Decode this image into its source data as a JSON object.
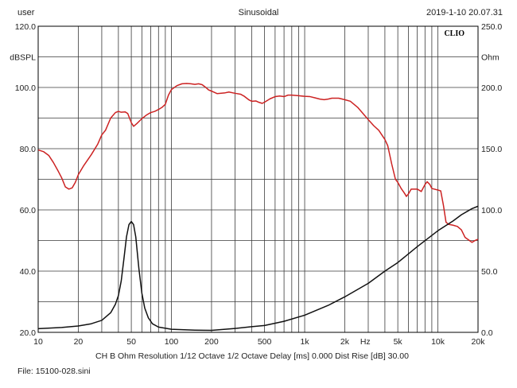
{
  "header": {
    "user": "user",
    "mode": "Sinusoidal",
    "datetime": "2019-1-10 20.07.31"
  },
  "footer": {
    "settings": "CH B   Ohm   Resolution 1/12 Octave   1/2 Octave   Delay [ms] 0.000   Dist Rise [dB] 30.00",
    "file": "File: 15100-028.sini"
  },
  "chart_data": {
    "type": "line",
    "brand_label": "CLIO",
    "xscale": "log",
    "xlim": [
      10,
      20000
    ],
    "x_unit_label": "Hz",
    "x_ticks": [
      {
        "v": 10,
        "label": "10"
      },
      {
        "v": 20,
        "label": "20"
      },
      {
        "v": 50,
        "label": "50"
      },
      {
        "v": 100,
        "label": "100"
      },
      {
        "v": 200,
        "label": "200"
      },
      {
        "v": 500,
        "label": "500"
      },
      {
        "v": 1000,
        "label": "1k"
      },
      {
        "v": 2000,
        "label": "2k"
      },
      {
        "v": 5000,
        "label": "5k"
      },
      {
        "v": 10000,
        "label": "10k"
      },
      {
        "v": 20000,
        "label": "20k"
      }
    ],
    "y_left": {
      "label": "dBSPL",
      "lim": [
        20,
        120
      ],
      "ticks": [
        {
          "v": 20,
          "label": "20.0"
        },
        {
          "v": 40,
          "label": "40.0"
        },
        {
          "v": 60,
          "label": "60.0"
        },
        {
          "v": 80,
          "label": "80.0"
        },
        {
          "v": 100,
          "label": "100.0"
        },
        {
          "v": 120,
          "label": "120.0"
        }
      ]
    },
    "y_right": {
      "label": "Ohm",
      "lim": [
        0,
        250
      ],
      "ticks": [
        {
          "v": 0,
          "label": "0.0"
        },
        {
          "v": 50,
          "label": "50.0"
        },
        {
          "v": 100,
          "label": "100.0"
        },
        {
          "v": 150,
          "label": "150.0"
        },
        {
          "v": 200,
          "label": "200.0"
        },
        {
          "v": 250,
          "label": "250.0"
        }
      ]
    },
    "grid": true,
    "series": [
      {
        "axis": "left",
        "color": "#cc2222",
        "points": [
          [
            10,
            79.6
          ],
          [
            11,
            79.0
          ],
          [
            12,
            77.8
          ],
          [
            13,
            75.5
          ],
          [
            14,
            73.0
          ],
          [
            15,
            70.5
          ],
          [
            16,
            67.5
          ],
          [
            17,
            66.8
          ],
          [
            18,
            67.2
          ],
          [
            19,
            69.0
          ],
          [
            20,
            71.5
          ],
          [
            22,
            74.5
          ],
          [
            25,
            78.0
          ],
          [
            28,
            81.5
          ],
          [
            30,
            84.5
          ],
          [
            32,
            86.0
          ],
          [
            35,
            90.0
          ],
          [
            38,
            91.8
          ],
          [
            40,
            92.2
          ],
          [
            42,
            91.9
          ],
          [
            45,
            92.0
          ],
          [
            47,
            91.5
          ],
          [
            50,
            88.5
          ],
          [
            52,
            87.3
          ],
          [
            55,
            88.2
          ],
          [
            60,
            89.8
          ],
          [
            65,
            91.0
          ],
          [
            70,
            91.8
          ],
          [
            75,
            92.2
          ],
          [
            80,
            92.8
          ],
          [
            85,
            93.5
          ],
          [
            90,
            94.5
          ],
          [
            95,
            97.5
          ],
          [
            100,
            99.3
          ],
          [
            110,
            100.6
          ],
          [
            120,
            101.2
          ],
          [
            130,
            101.3
          ],
          [
            140,
            101.2
          ],
          [
            150,
            101.0
          ],
          [
            160,
            101.2
          ],
          [
            170,
            100.9
          ],
          [
            180,
            100.1
          ],
          [
            190,
            99.2
          ],
          [
            200,
            98.8
          ],
          [
            220,
            98.0
          ],
          [
            250,
            98.2
          ],
          [
            270,
            98.5
          ],
          [
            300,
            98.1
          ],
          [
            330,
            97.8
          ],
          [
            350,
            97.2
          ],
          [
            380,
            96.0
          ],
          [
            400,
            95.5
          ],
          [
            430,
            95.6
          ],
          [
            450,
            95.2
          ],
          [
            480,
            94.8
          ],
          [
            500,
            95.2
          ],
          [
            550,
            96.3
          ],
          [
            600,
            97.0
          ],
          [
            650,
            97.2
          ],
          [
            700,
            97.0
          ],
          [
            750,
            97.5
          ],
          [
            800,
            97.5
          ],
          [
            900,
            97.3
          ],
          [
            1000,
            97.1
          ],
          [
            1100,
            97.0
          ],
          [
            1200,
            96.6
          ],
          [
            1300,
            96.2
          ],
          [
            1400,
            96.0
          ],
          [
            1500,
            96.2
          ],
          [
            1600,
            96.5
          ],
          [
            1800,
            96.5
          ],
          [
            2000,
            96.0
          ],
          [
            2200,
            95.5
          ],
          [
            2500,
            93.5
          ],
          [
            2800,
            91.0
          ],
          [
            3000,
            89.5
          ],
          [
            3300,
            87.5
          ],
          [
            3600,
            86.0
          ],
          [
            4000,
            83.0
          ],
          [
            4200,
            81.0
          ],
          [
            4500,
            75.0
          ],
          [
            4800,
            70.0
          ],
          [
            5000,
            69.0
          ],
          [
            5300,
            67.0
          ],
          [
            5600,
            65.5
          ],
          [
            5800,
            64.4
          ],
          [
            6000,
            65.2
          ],
          [
            6300,
            66.8
          ],
          [
            7000,
            66.8
          ],
          [
            7500,
            66.0
          ],
          [
            8000,
            68.3
          ],
          [
            8300,
            69.2
          ],
          [
            8700,
            68.3
          ],
          [
            9000,
            67.0
          ],
          [
            10000,
            66.5
          ],
          [
            10500,
            66.2
          ],
          [
            11000,
            61.5
          ],
          [
            11500,
            56.0
          ],
          [
            12000,
            55.3
          ],
          [
            13000,
            55.0
          ],
          [
            14000,
            54.6
          ],
          [
            15000,
            53.5
          ],
          [
            16000,
            51.0
          ],
          [
            17000,
            50.2
          ],
          [
            18000,
            49.4
          ],
          [
            19000,
            50.0
          ],
          [
            20000,
            50.4
          ]
        ]
      },
      {
        "axis": "right",
        "color": "#111111",
        "points": [
          [
            10,
            3.0
          ],
          [
            15,
            4.0
          ],
          [
            20,
            5.2
          ],
          [
            25,
            7.0
          ],
          [
            30,
            9.8
          ],
          [
            35,
            16.0
          ],
          [
            38,
            23.0
          ],
          [
            40,
            30.0
          ],
          [
            42,
            42.0
          ],
          [
            44,
            60.0
          ],
          [
            46,
            78.0
          ],
          [
            48,
            88.0
          ],
          [
            50,
            90.5
          ],
          [
            52,
            88.0
          ],
          [
            54,
            78.0
          ],
          [
            57,
            52.0
          ],
          [
            60,
            32.0
          ],
          [
            63,
            20.0
          ],
          [
            67,
            12.0
          ],
          [
            72,
            7.0
          ],
          [
            80,
            4.3
          ],
          [
            100,
            2.5
          ],
          [
            150,
            1.8
          ],
          [
            200,
            1.6
          ],
          [
            300,
            3.2
          ],
          [
            400,
            4.6
          ],
          [
            500,
            5.6
          ],
          [
            700,
            9.0
          ],
          [
            1000,
            14.0
          ],
          [
            1500,
            22.0
          ],
          [
            2000,
            29.0
          ],
          [
            3000,
            40.0
          ],
          [
            4000,
            50.0
          ],
          [
            5000,
            57.0
          ],
          [
            7000,
            70.0
          ],
          [
            10000,
            83.0
          ],
          [
            13000,
            91.0
          ],
          [
            15000,
            96.0
          ],
          [
            18000,
            101.0
          ],
          [
            20000,
            103.0
          ]
        ]
      }
    ]
  }
}
